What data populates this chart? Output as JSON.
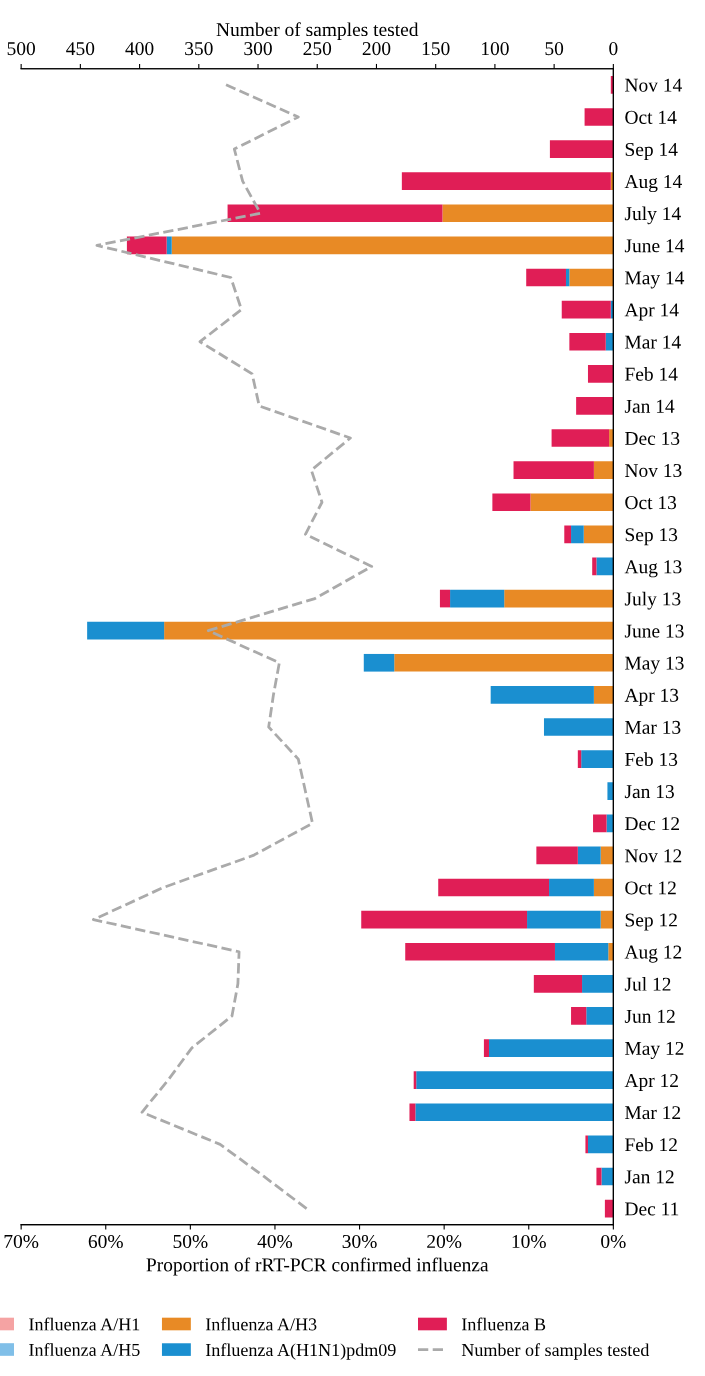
{
  "chart_data": {
    "type": "bar",
    "orientation": "horizontal",
    "stacked": true,
    "xlabel": "Proportion of rRT-PCR confirmed influenza",
    "x2label": "Number of samples tested",
    "categories": [
      "Nov 14",
      "Oct 14",
      "Sep 14",
      "Aug 14",
      "July 14",
      "June 14",
      "May 14",
      "Apr 14",
      "Mar 14",
      "Feb 14",
      "Jan 14",
      "Dec 13",
      "Nov 13",
      "Oct 13",
      "Sep 13",
      "Aug 13",
      "July 13",
      "June 13",
      "May 13",
      "Apr 13",
      "Mar 13",
      "Feb 13",
      "Jan 13",
      "Dec 12",
      "Nov 12",
      "Oct 12",
      "Sep 12",
      "Aug 12",
      "Jul 12",
      "Jun 12",
      "May 12",
      "Apr 12",
      "Mar 12",
      "Feb 12",
      "Jan 12",
      "Dec 11"
    ],
    "series": [
      {
        "name": "Influenza A/H1",
        "color": "#f5a3a3",
        "values": [
          0,
          0,
          0,
          0,
          0,
          0,
          0,
          0,
          0,
          0,
          0,
          0,
          0,
          0,
          0,
          0,
          0,
          0,
          0,
          0,
          0,
          0,
          0,
          0,
          0,
          0,
          0,
          0,
          0,
          0,
          0,
          0,
          0,
          0,
          0,
          0
        ]
      },
      {
        "name": "Influenza A/H5",
        "color": "#80bfe8",
        "values": [
          0,
          0,
          0,
          0,
          0,
          0,
          0,
          0,
          0,
          0,
          0,
          0,
          0,
          0,
          0,
          0,
          0,
          0,
          0,
          0,
          0,
          0,
          0,
          0,
          0,
          0,
          0,
          0,
          0,
          0,
          0,
          0,
          0,
          0,
          0,
          0
        ]
      },
      {
        "name": "Influenza A/H3",
        "color": "#e88a25",
        "values": [
          0,
          0,
          0,
          0.3,
          20.2,
          52.2,
          5.2,
          0,
          0,
          0,
          0,
          0.5,
          2.3,
          9.8,
          3.5,
          0,
          12.9,
          53.1,
          25.9,
          2.3,
          0,
          0,
          0,
          0,
          1.5,
          2.3,
          1.5,
          0.6,
          0,
          0,
          0,
          0,
          0,
          0,
          0,
          0
        ]
      },
      {
        "name": "Influenza A(H1N1)pdm09",
        "color": "#1a8fd0",
        "values": [
          0,
          0,
          0,
          0,
          0,
          0.6,
          0.4,
          0.3,
          0.9,
          0,
          0,
          0,
          0,
          0,
          1.5,
          2.0,
          6.4,
          9.1,
          3.6,
          12.2,
          8.2,
          3.8,
          0.7,
          0.8,
          2.7,
          5.3,
          8.7,
          6.3,
          3.7,
          3.2,
          14.7,
          23.3,
          23.4,
          3.0,
          1.4,
          0
        ]
      },
      {
        "name": "Influenza B",
        "color": "#e01e56",
        "values": [
          0.3,
          3.4,
          7.5,
          24.7,
          25.4,
          4.7,
          4.7,
          5.8,
          4.3,
          3.0,
          4.4,
          6.8,
          9.5,
          4.5,
          0.8,
          0.5,
          1.2,
          0,
          0,
          0,
          0,
          0.4,
          0,
          1.6,
          4.9,
          13.1,
          19.6,
          17.7,
          5.7,
          1.8,
          0.6,
          0.3,
          0.7,
          0.3,
          0.6,
          1.0
        ]
      },
      {
        "name": "Number of samples tested",
        "type": "line",
        "axis": "x2",
        "color": "#aaaaaa",
        "line_style": "dashed",
        "values": [
          327,
          266,
          320,
          313,
          298,
          436,
          323,
          314,
          349,
          305,
          299,
          222,
          255,
          246,
          260,
          204,
          252,
          342,
          282,
          287,
          291,
          266,
          260,
          254,
          304,
          380,
          439,
          316,
          317,
          322,
          356,
          376,
          398,
          332,
          295,
          259
        ]
      }
    ],
    "xlim": [
      70,
      0
    ],
    "xticks": [
      {
        "value": 70,
        "label": "70%"
      },
      {
        "value": 60,
        "label": "60%"
      },
      {
        "value": 50,
        "label": "50%"
      },
      {
        "value": 40,
        "label": "40%"
      },
      {
        "value": 30,
        "label": "30%"
      },
      {
        "value": 20,
        "label": "20%"
      },
      {
        "value": 10,
        "label": "10%"
      },
      {
        "value": 0,
        "label": "0%"
      }
    ],
    "x2lim": [
      500,
      0
    ],
    "x2ticks": [
      500,
      450,
      400,
      350,
      300,
      250,
      200,
      150,
      100,
      50,
      0
    ],
    "grid": false,
    "legend": "bottom"
  }
}
